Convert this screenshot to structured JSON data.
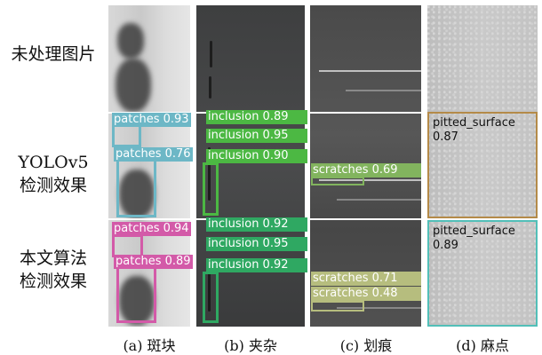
{
  "row_labels": {
    "row1": "未处理图片",
    "row2_line1": "YOLOv5",
    "row2_line2": "检测效果",
    "row3_line1": "本文算法",
    "row3_line2": "检测效果"
  },
  "colors": {
    "patches": "#6db7c6",
    "patches_ours": "#d35aa8",
    "inclusion": "#4cb843",
    "inclusion_ours": "#2fa862",
    "scratches": "#82b45e",
    "scratches_ours": "#b6bd7e",
    "pitted_yolo": "#b48a48",
    "pitted_ours": "#52bfb8"
  },
  "detections": {
    "yolo_patches": [
      "patches 0.93",
      "patches 0.76"
    ],
    "ours_patches": [
      "patches 0.94",
      "patches 0.89"
    ],
    "yolo_inclusion": [
      "inclusion 0.89",
      "inclusion 0.95",
      "inclusion 0.90"
    ],
    "ours_inclusion": [
      "inclusion 0.92",
      "inclusion 0.95",
      "inclusion 0.92"
    ],
    "yolo_scratches": [
      "scratches 0.69"
    ],
    "ours_scratches": [
      "scratches 0.71",
      "scratches 0.48"
    ],
    "yolo_pitted": {
      "label": "pitted_surface",
      "score": "0.87"
    },
    "ours_pitted": {
      "label": "pitted_surface",
      "score": "0.89"
    }
  },
  "captions": [
    "(a) 斑块",
    "(b) 夹杂",
    "(c) 划痕",
    "(d) 麻点"
  ]
}
